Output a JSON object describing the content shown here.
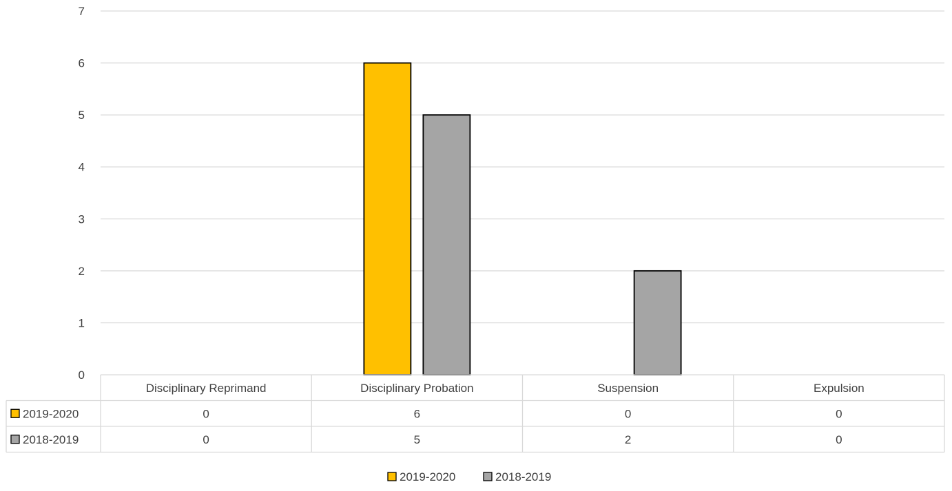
{
  "chart_data": {
    "type": "bar",
    "categories": [
      "Disciplinary Reprimand",
      "Disciplinary Probation",
      "Suspension",
      "Expulsion"
    ],
    "series": [
      {
        "name": "2019-2020",
        "values": [
          0,
          6,
          0,
          0
        ],
        "color": "#FFC000"
      },
      {
        "name": "2018-2019",
        "values": [
          0,
          5,
          2,
          0
        ],
        "color": "#A5A5A5"
      }
    ],
    "yticks": [
      "0",
      "1",
      "2",
      "3",
      "4",
      "5",
      "6",
      "7"
    ],
    "ylim": [
      0,
      7
    ],
    "grid": true,
    "data_table": true,
    "legend_position": "bottom"
  }
}
